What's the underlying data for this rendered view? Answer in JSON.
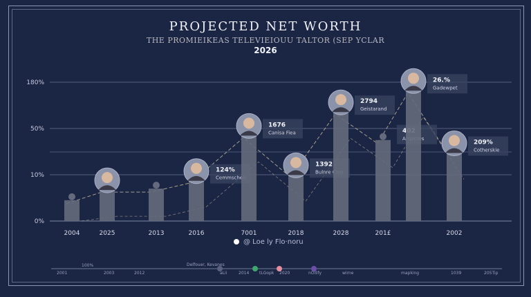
{
  "chart_data": {
    "type": "bar",
    "title": "PROJECTED NET WORTH",
    "subtitle": "THE PROMIEIKEAS TELEVIEIOUU TALTOR (SEP YCLAR",
    "year_label": "2026",
    "y_ticks": [
      "0%",
      "10%",
      "50%",
      "180%"
    ],
    "y_tick_values": [
      0,
      10,
      50,
      180
    ],
    "grid": true,
    "categories": [
      "2004",
      "2025",
      "2013",
      "2016",
      "7001",
      "2018",
      "2028",
      "201£",
      "",
      "2002"
    ],
    "values": [
      4.5,
      7,
      7,
      9,
      45,
      11,
      100,
      40,
      160,
      30
    ],
    "annotations": [
      {
        "category_index": 3,
        "value": "124%",
        "label": "Cemmscheo"
      },
      {
        "category_index": 4,
        "value": "1676",
        "label": "Canisa Fiea"
      },
      {
        "category_index": 5,
        "value": "1392",
        "label": "Bulnre Cleo"
      },
      {
        "category_index": 6,
        "value": "2794",
        "label": "Geistarand"
      },
      {
        "category_index": 7,
        "value": "402",
        "label": "Arrpictes"
      },
      {
        "category_index": 8,
        "value": "26.%",
        "label": "Gadewpet"
      },
      {
        "category_index": 9,
        "value": "209%",
        "label": "Cotherskie"
      }
    ],
    "portrait_categories": [
      1,
      3,
      4,
      5,
      6,
      8,
      9
    ],
    "silhouette_categories": [
      0,
      2,
      7
    ],
    "colors": {
      "background": "#1b2544",
      "bar": "#656b7c",
      "trend": "#c9c0a0",
      "grid": "#7d87a6"
    }
  },
  "caption": "@ Loe ly Flo·noru",
  "timeline": [
    "2001",
    "100%",
    "2003",
    "2012",
    "Delfouer, Kevanes",
    "aLii",
    "2014",
    "tLGopk",
    "2020",
    "nOllify",
    "wirne",
    "mapking",
    "1039",
    "205Tip"
  ]
}
